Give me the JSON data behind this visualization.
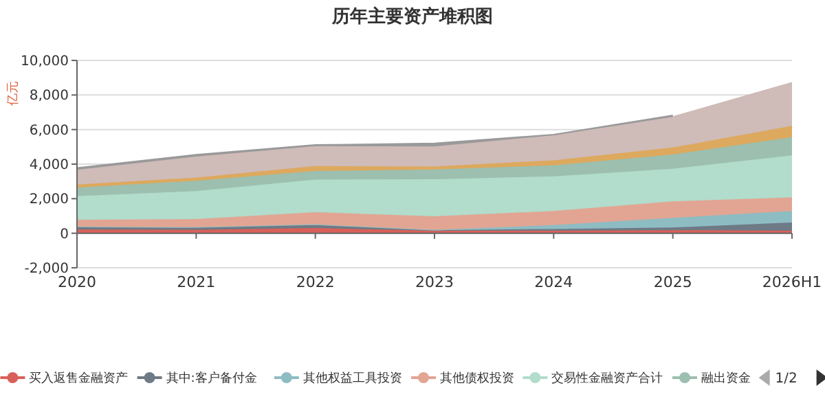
{
  "chart_data": {
    "type": "area",
    "stacked": true,
    "title": "历年主要资产堆积图",
    "ylabel": "亿元",
    "categories": [
      "2020",
      "2021",
      "2022",
      "2023",
      "2024",
      "2025",
      "2026H1"
    ],
    "ylim": [
      -2000,
      10000
    ],
    "yticks": [
      {
        "value": -2000,
        "label": "-2,000"
      },
      0,
      {
        "value": 2000,
        "label": "2,000"
      },
      {
        "value": 4000,
        "label": "4,000"
      },
      {
        "value": 6000,
        "label": "6,000"
      },
      {
        "value": 8000,
        "label": "8,000"
      },
      {
        "value": 10000,
        "label": "10,000"
      }
    ],
    "grid": "y",
    "legend": "bottom",
    "annotations": [
      "1/2"
    ],
    "series": [
      {
        "name": "买入返售金融资产",
        "color": "#d9605a",
        "values": [
          220,
          200,
          300,
          150,
          150,
          180,
          150
        ]
      },
      {
        "name": "其中:客户备付金",
        "color": "#6e7a85",
        "values": [
          160,
          150,
          210,
          30,
          100,
          150,
          470
        ]
      },
      {
        "name": "其他权益工具投资",
        "color": "#8ebcc3",
        "values": [
          0,
          0,
          0,
          20,
          220,
          560,
          670
        ]
      },
      {
        "name": "其他债权投资",
        "color": "#e2a593",
        "values": [
          400,
          470,
          710,
          780,
          820,
          950,
          780
        ]
      },
      {
        "name": "交易性金融资产合计",
        "color": "#b2dccb",
        "values": [
          1370,
          1620,
          1890,
          2150,
          2000,
          1890,
          2440
        ]
      },
      {
        "name": "融出资金",
        "color": "#9cbfaf",
        "values": [
          490,
          600,
          490,
          560,
          640,
          830,
          1050
        ]
      },
      {
        "color": "#dda95e",
        "values": [
          180,
          180,
          290,
          170,
          290,
          400,
          660
        ]
      },
      {
        "color": "#cfbbb8",
        "values": [
          850,
          1220,
          1150,
          1160,
          1450,
          1770,
          2490
        ]
      },
      {
        "color": "#9a9a9a",
        "values": [
          110,
          110,
          70,
          180,
          40,
          90,
          null
        ]
      }
    ]
  }
}
